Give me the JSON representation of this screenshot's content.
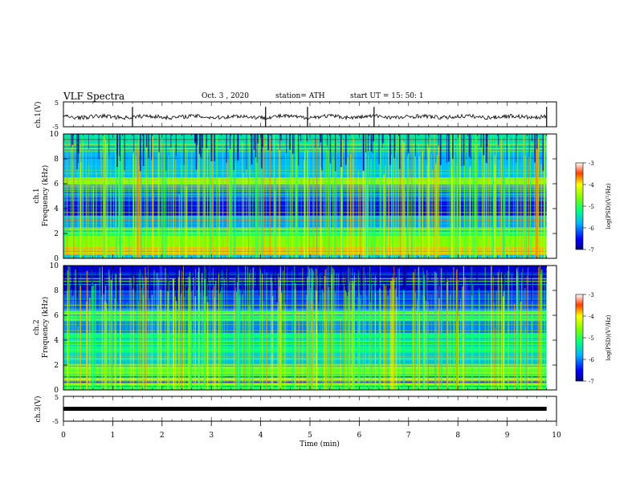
{
  "header": {
    "title": "VLF Spectra",
    "date": "Oct. 3  , 2020",
    "station": "station= ATH",
    "start": "start  UT  =   15: 50: 1"
  },
  "chart_data": [
    {
      "type": "line",
      "panel": "ch1-waveform",
      "ylabel": "ch.1(V)",
      "x_range": [
        0,
        10
      ],
      "ylim": [
        -5,
        5
      ],
      "yticks": [
        "5",
        "-5"
      ],
      "description_values": {
        "mean_level_V": -1,
        "spike_times_min": [
          1.4,
          4.1,
          4.95,
          6.3,
          9.8
        ]
      }
    },
    {
      "type": "heatmap",
      "panel": "ch1-spectrogram",
      "ylabel": "ch.1\nFrequency  (kHz)",
      "ylabel_line1": "ch.1",
      "ylabel_line2": "Frequency  (kHz)",
      "x_range": [
        0,
        9.8
      ],
      "ylim": [
        0,
        10
      ],
      "yticks": [
        "0",
        "2",
        "4",
        "6",
        "8",
        "10"
      ],
      "colorbar": {
        "label": "log(PSD)(V²/Hz)",
        "range": [
          -7,
          -3
        ],
        "ticks": [
          "-3",
          "-4",
          "-5",
          "-6",
          "-7"
        ]
      },
      "bands_kHz": [
        {
          "from": 0.0,
          "to": 0.3,
          "level": -5.6
        },
        {
          "from": 0.3,
          "to": 0.9,
          "level": -3.8
        },
        {
          "from": 0.9,
          "to": 1.8,
          "level": -4.6
        },
        {
          "from": 1.8,
          "to": 2.4,
          "level": -5.2
        },
        {
          "from": 2.4,
          "to": 3.4,
          "level": -5.9
        },
        {
          "from": 3.4,
          "to": 4.6,
          "level": -6.6
        },
        {
          "from": 4.6,
          "to": 5.8,
          "level": -6.1
        },
        {
          "from": 5.8,
          "to": 6.5,
          "level": -4.6
        },
        {
          "from": 6.5,
          "to": 8.6,
          "level": -5.8
        },
        {
          "from": 8.6,
          "to": 10.0,
          "level": -5.4
        }
      ]
    },
    {
      "type": "heatmap",
      "panel": "ch2-spectrogram",
      "ylabel": "ch.2\nFrequency  (kHz)",
      "ylabel_line1": "ch.2",
      "ylabel_line2": "Frequency  (kHz)",
      "x_range": [
        0,
        9.8
      ],
      "ylim": [
        0,
        10
      ],
      "yticks": [
        "0",
        "2",
        "4",
        "6",
        "8",
        "10"
      ],
      "colorbar": {
        "label": "log(PSD)(V²/Hz)",
        "range": [
          -7,
          -3
        ],
        "ticks": [
          "-3",
          "-4",
          "-5",
          "-6",
          "-7"
        ]
      },
      "bands_kHz": [
        {
          "from": 0.0,
          "to": 0.4,
          "level": -5.0
        },
        {
          "from": 0.4,
          "to": 1.0,
          "level": -4.3
        },
        {
          "from": 1.0,
          "to": 2.0,
          "level": -4.8
        },
        {
          "from": 2.0,
          "to": 3.0,
          "level": -5.6
        },
        {
          "from": 3.0,
          "to": 4.6,
          "level": -5.2
        },
        {
          "from": 4.6,
          "to": 5.6,
          "level": -6.0
        },
        {
          "from": 5.6,
          "to": 6.4,
          "level": -5.0
        },
        {
          "from": 6.4,
          "to": 8.0,
          "level": -6.2
        },
        {
          "from": 8.0,
          "to": 10.0,
          "level": -6.7
        }
      ]
    },
    {
      "type": "line",
      "panel": "ch3-waveform",
      "ylabel": "ch.3(V)",
      "xlabel": "Time  (min)",
      "x_range": [
        0,
        10
      ],
      "ylim": [
        -5,
        5
      ],
      "yticks": [
        "5",
        "-5"
      ],
      "xticks": [
        "0",
        "1",
        "2",
        "3",
        "4",
        "5",
        "6",
        "7",
        "8",
        "9",
        "10"
      ],
      "level_V": 0
    }
  ]
}
